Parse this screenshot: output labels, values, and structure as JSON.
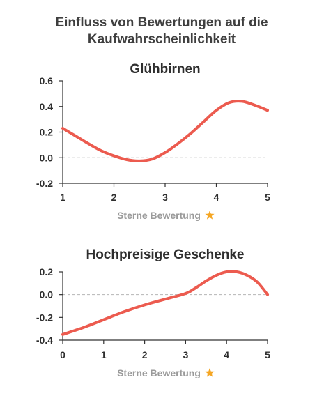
{
  "title_line1": "Einfluss von Bewertungen auf die",
  "title_line2": "Kaufwahrscheinlichkeit",
  "colors": {
    "line": "#ec5b4f",
    "star": "#f5a623",
    "axis": "#333333",
    "zero": "#b5b5b5"
  },
  "chart_data": [
    {
      "type": "line",
      "title": "Glühbirnen",
      "xlabel": "Sterne Bewertung",
      "xlabel_icon": "star-icon",
      "xlim": [
        1,
        5
      ],
      "ylim": [
        -0.2,
        0.6
      ],
      "xticks": [
        1,
        2,
        3,
        4,
        5
      ],
      "xtick_labels": [
        "1",
        "2",
        "3",
        "4",
        "5"
      ],
      "yticks": [
        -0.2,
        0.0,
        0.2,
        0.4,
        0.6
      ],
      "ytick_labels": [
        "-0.2",
        "0.0",
        "0.2",
        "0.4",
        "0.6"
      ],
      "zero_line": true,
      "grid": false,
      "x": [
        1.0,
        1.25,
        1.5,
        1.75,
        2.0,
        2.25,
        2.5,
        2.75,
        3.0,
        3.25,
        3.5,
        3.75,
        4.0,
        4.25,
        4.5,
        4.75,
        5.0
      ],
      "y": [
        0.23,
        0.17,
        0.11,
        0.055,
        0.015,
        -0.015,
        -0.025,
        -0.01,
        0.04,
        0.11,
        0.19,
        0.28,
        0.37,
        0.43,
        0.44,
        0.41,
        0.37
      ]
    },
    {
      "type": "line",
      "title": "Hochpreisige Geschenke",
      "xlabel": "Sterne Bewertung",
      "xlabel_icon": "star-icon",
      "xlim": [
        0,
        5
      ],
      "ylim": [
        -0.4,
        0.2
      ],
      "xticks": [
        0,
        1,
        2,
        3,
        4,
        5
      ],
      "xtick_labels": [
        "0",
        "1",
        "2",
        "3",
        "4",
        "5"
      ],
      "yticks": [
        -0.4,
        -0.2,
        0.0,
        0.2
      ],
      "ytick_labels": [
        "-0.4",
        "-0.2",
        "0.0",
        "0.2"
      ],
      "zero_line": true,
      "grid": false,
      "x": [
        0.0,
        0.5,
        1.0,
        1.5,
        2.0,
        2.5,
        3.0,
        3.25,
        3.5,
        3.75,
        4.0,
        4.25,
        4.5,
        4.75,
        5.0
      ],
      "y": [
        -0.35,
        -0.29,
        -0.22,
        -0.15,
        -0.09,
        -0.04,
        0.01,
        0.06,
        0.12,
        0.17,
        0.2,
        0.2,
        0.17,
        0.11,
        0.0
      ]
    }
  ]
}
